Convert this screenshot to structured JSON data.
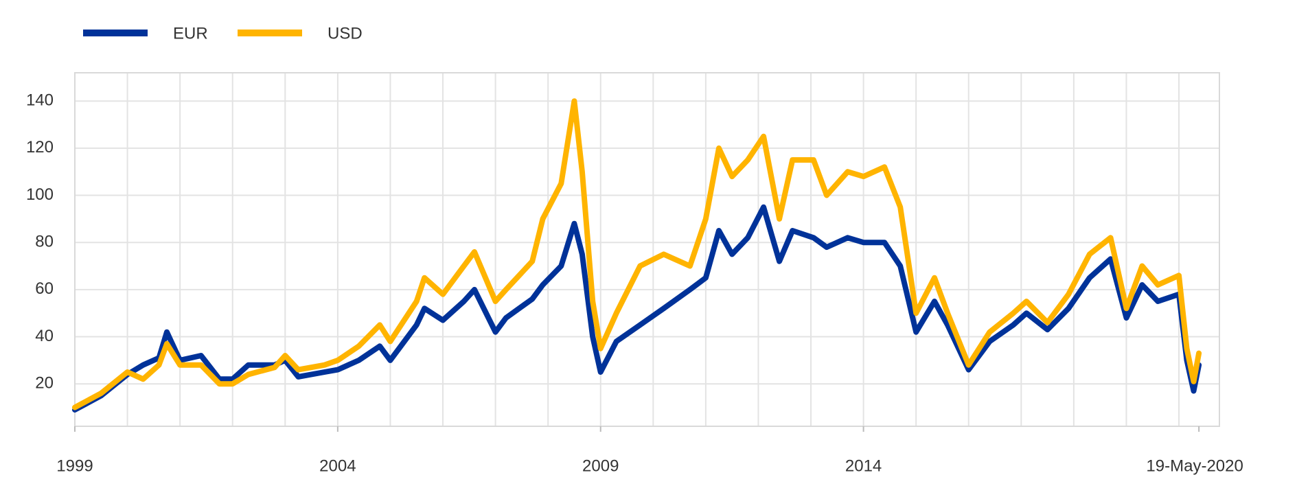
{
  "chart_data": {
    "type": "line",
    "x": [
      1999.0,
      1999.5,
      2000.0,
      2000.3,
      2000.6,
      2000.75,
      2001.0,
      2001.4,
      2001.75,
      2002.0,
      2002.3,
      2002.8,
      2003.0,
      2003.25,
      2003.75,
      2004.0,
      2004.4,
      2004.8,
      2005.0,
      2005.5,
      2005.65,
      2006.0,
      2006.4,
      2006.6,
      2007.0,
      2007.2,
      2007.7,
      2007.9,
      2008.25,
      2008.5,
      2008.65,
      2008.85,
      2009.0,
      2009.3,
      2009.75,
      2010.2,
      2010.7,
      2011.0,
      2011.25,
      2011.5,
      2011.8,
      2012.1,
      2012.4,
      2012.65,
      2013.05,
      2013.3,
      2013.7,
      2014.0,
      2014.4,
      2014.7,
      2015.0,
      2015.35,
      2015.6,
      2016.0,
      2016.4,
      2016.85,
      2017.1,
      2017.5,
      2017.9,
      2018.3,
      2018.7,
      2019.0,
      2019.3,
      2019.6,
      2020.0,
      2020.15,
      2020.28,
      2020.38
    ],
    "series": [
      {
        "name": "EUR",
        "color": "#003299",
        "values": [
          9,
          15,
          24,
          28,
          31,
          42,
          30,
          32,
          22,
          22,
          28,
          28,
          30,
          23,
          25,
          26,
          30,
          36,
          30,
          45,
          52,
          47,
          55,
          60,
          42,
          48,
          56,
          62,
          70,
          88,
          75,
          40,
          25,
          38,
          45,
          52,
          60,
          65,
          85,
          75,
          82,
          95,
          72,
          85,
          82,
          78,
          82,
          80,
          80,
          70,
          42,
          55,
          45,
          26,
          38,
          45,
          50,
          43,
          52,
          65,
          73,
          48,
          62,
          55,
          58,
          30,
          17,
          28
        ]
      },
      {
        "name": "USD",
        "color": "#ffb400",
        "values": [
          10,
          16,
          25,
          22,
          28,
          37,
          28,
          28,
          20,
          20,
          24,
          27,
          32,
          26,
          28,
          30,
          36,
          45,
          38,
          55,
          65,
          58,
          70,
          76,
          55,
          60,
          72,
          90,
          105,
          140,
          110,
          55,
          35,
          50,
          70,
          75,
          70,
          90,
          120,
          108,
          115,
          125,
          90,
          115,
          115,
          100,
          110,
          108,
          112,
          95,
          50,
          65,
          50,
          28,
          42,
          50,
          55,
          46,
          58,
          75,
          82,
          52,
          70,
          62,
          66,
          35,
          21,
          33
        ]
      }
    ],
    "xlim": [
      1999,
      2020.77
    ],
    "xticks": [
      1999,
      2004,
      2009,
      2014,
      {
        "value": 2020.38,
        "label": "19-May-2020"
      }
    ],
    "xgrid_step": 1,
    "ylim": [
      2,
      152
    ],
    "yticks": [
      20,
      40,
      60,
      80,
      100,
      120,
      140
    ],
    "grid": true,
    "legend": "top-left"
  }
}
